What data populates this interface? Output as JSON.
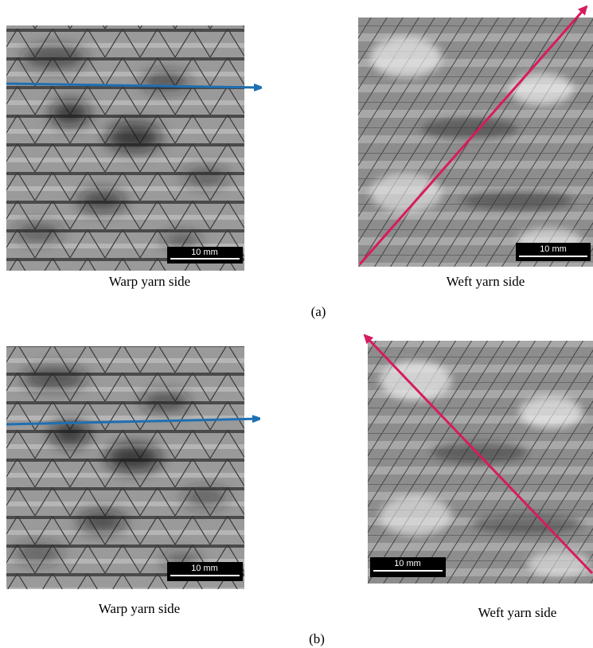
{
  "panels": [
    {
      "label": "(a)",
      "images": [
        {
          "caption": "Warp yarn side",
          "scale_bar": "10 mm"
        },
        {
          "caption": "Weft yarn side",
          "scale_bar": "10 mm"
        }
      ]
    },
    {
      "label": "(b)",
      "images": [
        {
          "caption": "Warp yarn side",
          "scale_bar": "10 mm"
        },
        {
          "caption": "Weft yarn side",
          "scale_bar": "10 mm"
        }
      ]
    }
  ]
}
